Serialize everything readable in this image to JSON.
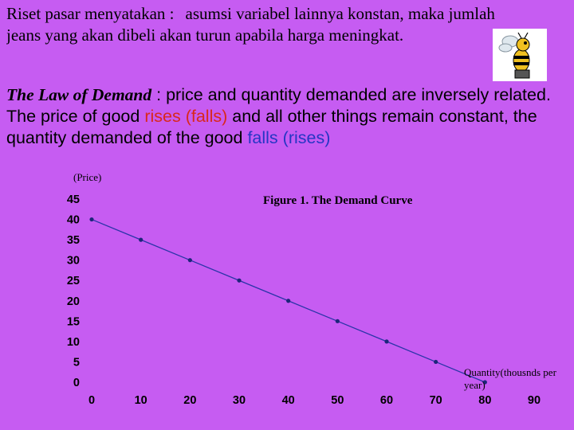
{
  "intro": {
    "part1": "Riset pasar menyatakan :",
    "part2": "asumsi variabel lainnya konstan, maka jumlah",
    "line2": "jeans yang akan dibeli akan turun apabila harga meningkat."
  },
  "law": {
    "title": "The Law of Demand",
    "colon": " : price and quantity demanded are inversely related.",
    "s1": "The price of good ",
    "rises": "rises",
    "falls_paren": "(falls)",
    "s2": " and all other things remain constant, the quantity demanded of the good ",
    "falls": "falls",
    "rises_paren": "(rises)"
  },
  "colors": {
    "background": "#c65cf2",
    "line": "#2a35a8",
    "point": "#1c267a",
    "red_text": "#d9281c",
    "blue_text": "#2636c4"
  },
  "icon": "cartoon-bee-icon",
  "chart_data": {
    "type": "line",
    "title": "Figure 1. The Demand Curve",
    "ylabel": "(Price)",
    "xlabel": "Quantity(thousnds per year)",
    "x": [
      0,
      10,
      20,
      30,
      40,
      50,
      60,
      70,
      80
    ],
    "y": [
      40,
      35,
      30,
      25,
      20,
      15,
      10,
      5,
      0
    ],
    "xticks": [
      "0",
      "10",
      "20",
      "30",
      "40",
      "50",
      "60",
      "70",
      "80",
      "90"
    ],
    "yticks": [
      "0",
      "5",
      "10",
      "15",
      "20",
      "25",
      "30",
      "35",
      "40",
      "45"
    ],
    "xlim": [
      0,
      90
    ],
    "ylim": [
      0,
      45
    ],
    "grid": false,
    "legend": "none"
  }
}
